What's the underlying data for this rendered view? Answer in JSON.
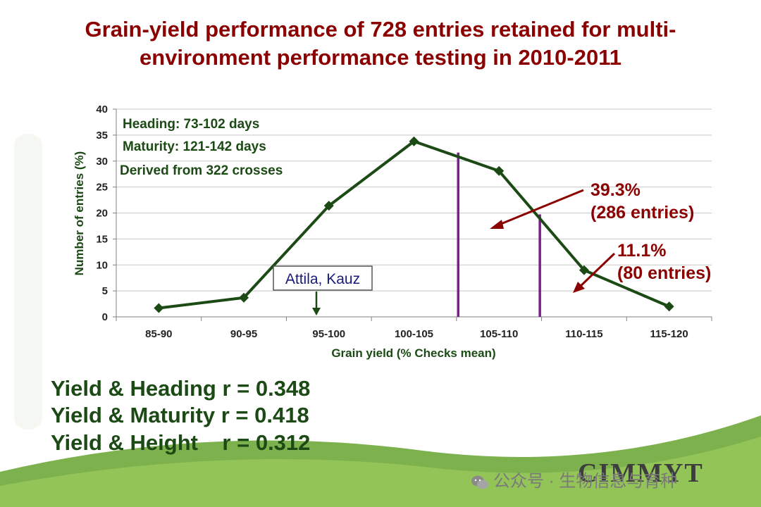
{
  "title": {
    "line1": "Grain-yield performance of 728 entries retained for multi-",
    "line2": "environment performance testing in 2010-2011"
  },
  "chart_data": {
    "type": "line",
    "categories": [
      "85-90",
      "90-95",
      "95-100",
      "100-105",
      "105-110",
      "110-115",
      "115-120"
    ],
    "values": [
      1.7,
      3.7,
      21.4,
      33.8,
      28.1,
      9.0,
      2.0
    ],
    "xlabel": "Grain yield (% Checks mean)",
    "ylabel": "Number of entries (%)",
    "ylim": [
      0,
      40
    ],
    "yticks": [
      0,
      5,
      10,
      15,
      20,
      25,
      30,
      35,
      40
    ],
    "grid": true,
    "line_color": "#1b4a14",
    "info_box": [
      "Heading: 73-102 days",
      "Maturity: 121-142 days",
      "Derived from 322 crosses"
    ],
    "reference_lines": [
      {
        "x": 3.52,
        "color": "#7b1f8e"
      },
      {
        "x": 4.48,
        "color": "#7b1f8e"
      }
    ],
    "annotations": {
      "check_label": "Attila, Kauz",
      "check_x": 2.0,
      "pct_a_line1": "39.3%",
      "pct_a_line2": "(286 entries)",
      "pct_b_line1": "11.1%",
      "pct_b_line2": "(80 entries)",
      "annotation_color": "#8b0000"
    }
  },
  "correlations": [
    "Yield & Heading r = 0.348",
    "Yield & Maturity r = 0.418",
    "Yield & Height    r = 0.312"
  ],
  "footer": {
    "logo": "CIMMYT",
    "watermark": "公众号 · 生物信息与育种"
  }
}
